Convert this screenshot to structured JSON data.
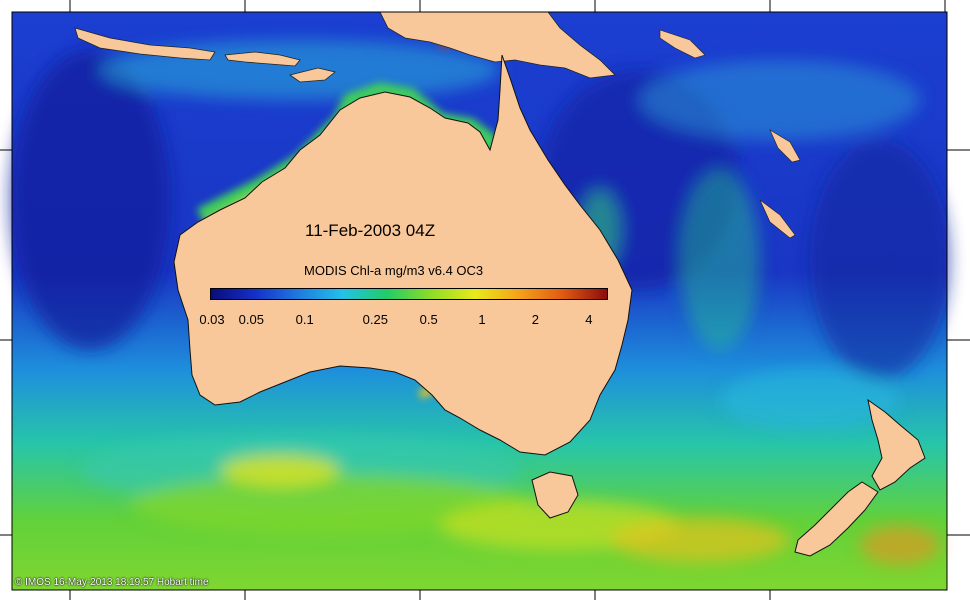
{
  "map": {
    "date_label": "11-Feb-2003 04Z",
    "colorbar": {
      "title": "MODIS Chl-a mg/m3 v6.4 OC3",
      "unit": "mg/m3",
      "scale": "log",
      "ticks": [
        {
          "label": "0.03",
          "value": 0.03
        },
        {
          "label": "0.05",
          "value": 0.05
        },
        {
          "label": "0.1",
          "value": 0.1
        },
        {
          "label": "0.25",
          "value": 0.25
        },
        {
          "label": "0.5",
          "value": 0.5
        },
        {
          "label": "1",
          "value": 1
        },
        {
          "label": "2",
          "value": 2
        },
        {
          "label": "4",
          "value": 4
        }
      ],
      "range": [
        0.03,
        5
      ],
      "colors": [
        "#0a0c7a",
        "#1530c8",
        "#1f7be0",
        "#23c2e8",
        "#22cc66",
        "#8edc28",
        "#e8ea1c",
        "#f5a21a",
        "#e05a12",
        "#8c0c0c"
      ]
    },
    "land_color": "#f9c89a",
    "credit": "© IMOS 16-May-2013 18:19:57 Hobart time"
  }
}
